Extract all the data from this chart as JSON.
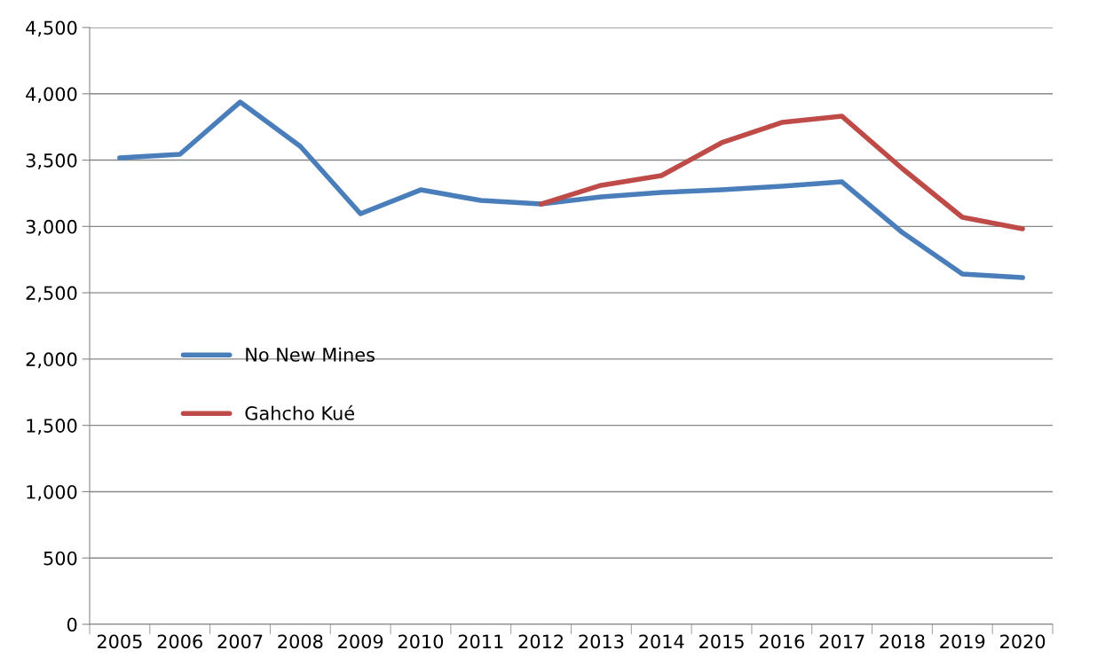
{
  "chart_data": {
    "type": "line",
    "categories": [
      "2005",
      "2006",
      "2007",
      "2008",
      "2009",
      "2010",
      "2011",
      "2012",
      "2013",
      "2014",
      "2015",
      "2016",
      "2017",
      "2018",
      "2019",
      "2020"
    ],
    "series": [
      {
        "name": "No New Mines",
        "color": "#4a7ebb",
        "values": [
          3517,
          3544,
          3938,
          3604,
          3096,
          3276,
          3196,
          3169,
          3223,
          3256,
          3276,
          3303,
          3336,
          2955,
          2641,
          2614
        ]
      },
      {
        "name": "Gahcho Kué",
        "color": "#be4b48",
        "values": [
          null,
          null,
          null,
          null,
          null,
          null,
          null,
          3169,
          3310,
          3383,
          3631,
          3784,
          3831,
          3437,
          3069,
          2982
        ]
      }
    ],
    "ylim": [
      0,
      4500
    ],
    "yticks": [
      {
        "value": 0,
        "label": "0"
      },
      {
        "value": 500,
        "label": "500"
      },
      {
        "value": 1000,
        "label": "1,000"
      },
      {
        "value": 1500,
        "label": "1,500"
      },
      {
        "value": 2000,
        "label": "2,000"
      },
      {
        "value": 2500,
        "label": "2,500"
      },
      {
        "value": 3000,
        "label": "3,000"
      },
      {
        "value": 3500,
        "label": "3,500"
      },
      {
        "value": 4000,
        "label": "4,000"
      },
      {
        "value": 4500,
        "label": "4,500"
      }
    ],
    "grid": "y",
    "legend": "center left",
    "marker": "none",
    "line_style": "solid"
  }
}
